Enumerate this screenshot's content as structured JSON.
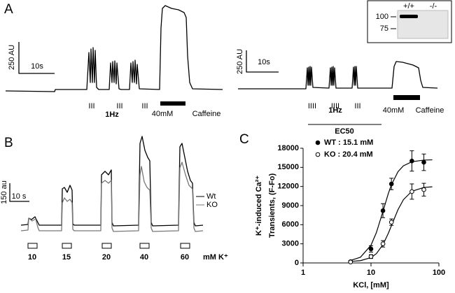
{
  "panel_a": {
    "label": "A",
    "left": {
      "scale_y": "250 AU",
      "scale_x": "10s",
      "markers": [
        "III",
        "III",
        "III"
      ],
      "rate": "1Hz",
      "caffeine_dose": "40mM",
      "caffeine": "Caffeine"
    },
    "right": {
      "scale_y": "250 AU",
      "scale_x": "10s",
      "markers": [
        "IIII",
        "IIII",
        "III"
      ],
      "rate": "1Hz",
      "caffeine_dose": "40mM",
      "caffeine": "Caffeine"
    },
    "blot": {
      "lanes": [
        "+/+",
        "-/-"
      ],
      "markers": [
        100,
        75
      ]
    }
  },
  "panel_b": {
    "label": "B",
    "scale_y": "150 au",
    "scale_x": "10 s",
    "legend": [
      "Wt",
      "KO"
    ],
    "doses": [
      10,
      15,
      20,
      40,
      60
    ],
    "dose_unit": "mM K⁺"
  },
  "chart_data": {
    "type": "scatter",
    "panel_label": "C",
    "legend_title": "EC50",
    "xlabel": "KCl, [mM]",
    "ylabel": [
      "K⁺-induced Ca²⁺",
      "Transients, (F-Fo)"
    ],
    "xscale": "log",
    "xlim": [
      1,
      100
    ],
    "xticks": [
      1,
      10,
      100
    ],
    "ylim": [
      0,
      18000
    ],
    "yticks": [
      0,
      3000,
      6000,
      9000,
      12000,
      15000,
      18000
    ],
    "x": [
      5,
      10,
      15,
      20,
      40,
      60
    ],
    "fit_x": [
      5,
      7,
      10,
      12,
      15,
      18,
      20,
      25,
      30,
      40,
      60,
      80
    ],
    "series": [
      {
        "name": "WT : 15.1 mM",
        "color": "#000000",
        "marker": "filled",
        "values": [
          200,
          2200,
          8200,
          12400,
          16000,
          15800
        ],
        "errors": [
          150,
          500,
          1100,
          900,
          1600,
          1300
        ],
        "fit_values": [
          390,
          900,
          2780,
          4760,
          8090,
          10900,
          12280,
          14320,
          15240,
          15880,
          16140,
          16180
        ]
      },
      {
        "name": "KO  : 20.4 mM",
        "color": "#000000",
        "marker": "open",
        "values": [
          150,
          1000,
          3000,
          6400,
          11200,
          11500
        ],
        "errors": [
          150,
          300,
          500,
          500,
          1200,
          1000
        ],
        "fit_values": [
          240,
          360,
          840,
          1460,
          2870,
          4650,
          5860,
          8370,
          9920,
          11250,
          11850,
          11950
        ]
      }
    ]
  }
}
